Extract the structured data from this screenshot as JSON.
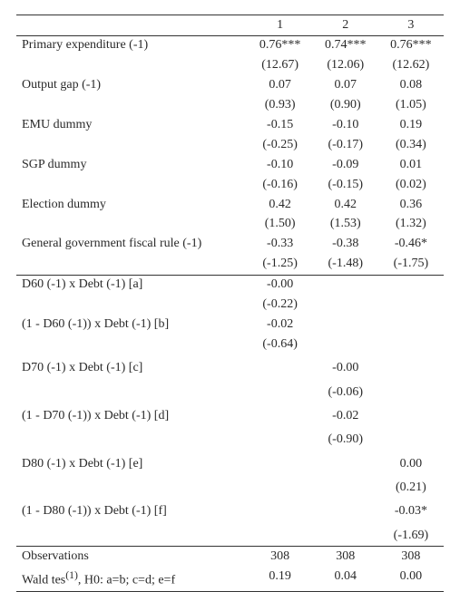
{
  "headers": [
    "1",
    "2",
    "3"
  ],
  "rows": [
    {
      "label": "Primary expenditure (-1)",
      "v": [
        "0.76***",
        "0.74***",
        "0.76***"
      ],
      "t": [
        "(12.67)",
        "(12.06)",
        "(12.62)"
      ]
    },
    {
      "label": "Output gap (-1)",
      "v": [
        "0.07",
        "0.07",
        "0.08"
      ],
      "t": [
        "(0.93)",
        "(0.90)",
        "(1.05)"
      ]
    },
    {
      "label": "EMU dummy",
      "v": [
        "-0.15",
        "-0.10",
        "0.19"
      ],
      "t": [
        "(-0.25)",
        "(-0.17)",
        "(0.34)"
      ]
    },
    {
      "label": "SGP dummy",
      "v": [
        "-0.10",
        "-0.09",
        "0.01"
      ],
      "t": [
        "(-0.16)",
        "(-0.15)",
        "(0.02)"
      ]
    },
    {
      "label": "Election dummy",
      "v": [
        "0.42",
        "0.42",
        "0.36"
      ],
      "t": [
        "(1.50)",
        "(1.53)",
        "(1.32)"
      ]
    },
    {
      "label": "General government fiscal rule (-1)",
      "v": [
        "-0.33",
        "-0.38",
        "-0.46*"
      ],
      "t": [
        "(-1.25)",
        "(-1.48)",
        "(-1.75)"
      ]
    }
  ],
  "blocks": [
    [
      {
        "label": "D60 (-1) x Debt (-1) [a]",
        "v": [
          "-0.00",
          "",
          ""
        ],
        "t": [
          "(-0.22)",
          "",
          ""
        ]
      },
      {
        "label": "(1 - D60 (-1)) x Debt (-1) [b]",
        "v": [
          "-0.02",
          "",
          ""
        ],
        "t": [
          "(-0.64)",
          "",
          ""
        ]
      }
    ],
    [
      {
        "label": "D70 (-1) x Debt (-1) [c]",
        "v": [
          "",
          "-0.00",
          ""
        ],
        "t": [
          "",
          "(-0.06)",
          ""
        ]
      },
      {
        "label": "(1 - D70 (-1)) x Debt (-1) [d]",
        "v": [
          "",
          "-0.02",
          ""
        ],
        "t": [
          "",
          "(-0.90)",
          ""
        ]
      }
    ],
    [
      {
        "label": "D80 (-1) x Debt (-1) [e]",
        "v": [
          "",
          "",
          "0.00"
        ],
        "t": [
          "",
          "",
          "(0.21)"
        ]
      },
      {
        "label": "(1 - D80 (-1)) x Debt (-1) [f]",
        "v": [
          "",
          "",
          "-0.03*"
        ],
        "t": [
          "",
          "",
          "(-1.69)"
        ]
      }
    ]
  ],
  "footer": {
    "obs_label": "Observations",
    "obs": [
      "308",
      "308",
      "308"
    ],
    "wald_label_a": "Wald tes",
    "wald_sup": "(1)",
    "wald_label_b": ", H0: a=b; c=d; e=f",
    "wald": [
      "0.19",
      "0.04",
      "0.00"
    ]
  }
}
